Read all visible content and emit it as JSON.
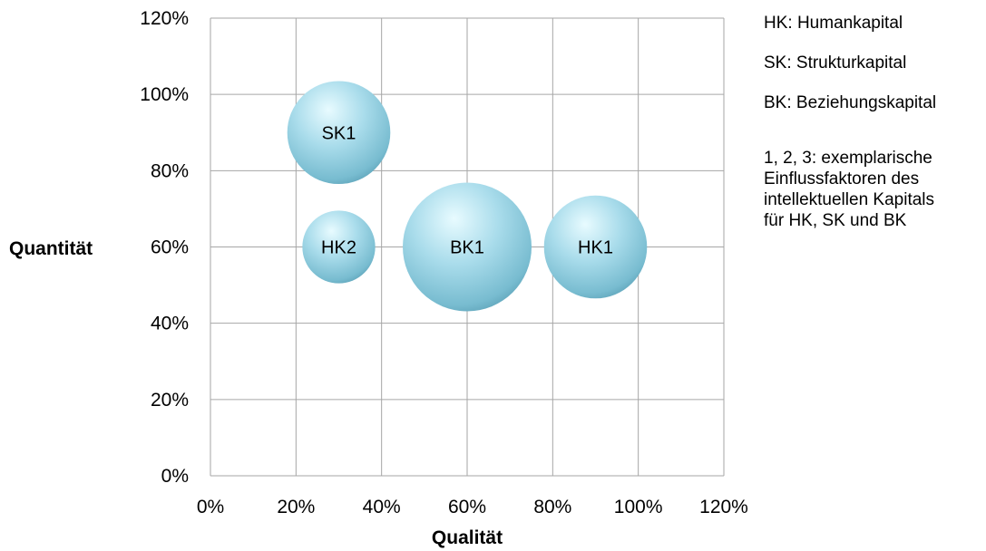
{
  "chart_data": {
    "type": "bubble",
    "title": "",
    "xlabel": "Qualität",
    "ylabel": "Quantität",
    "xlim": [
      0,
      120
    ],
    "ylim": [
      0,
      120
    ],
    "x_ticks": [
      "0%",
      "20%",
      "40%",
      "60%",
      "80%",
      "100%",
      "120%"
    ],
    "y_ticks": [
      "0%",
      "20%",
      "40%",
      "60%",
      "80%",
      "100%",
      "120%"
    ],
    "grid": true,
    "bubbles": [
      {
        "label": "SK1",
        "x": 30,
        "y": 90,
        "size": 1.6
      },
      {
        "label": "HK2",
        "x": 30,
        "y": 60,
        "size": 0.8
      },
      {
        "label": "BK1",
        "x": 60,
        "y": 60,
        "size": 2.5
      },
      {
        "label": "HK1",
        "x": 90,
        "y": 60,
        "size": 1.6
      }
    ],
    "bubble_color": "#8fcfe0"
  },
  "legend": {
    "entries": [
      "HK: Humankapital",
      "SK: Strukturkapital",
      "BK: Beziehungskapital"
    ],
    "note_lines": [
      "1, 2, 3: exemplarische",
      "Einflussfaktoren des",
      "intellektuellen Kapitals",
      "für HK, SK und BK"
    ]
  }
}
